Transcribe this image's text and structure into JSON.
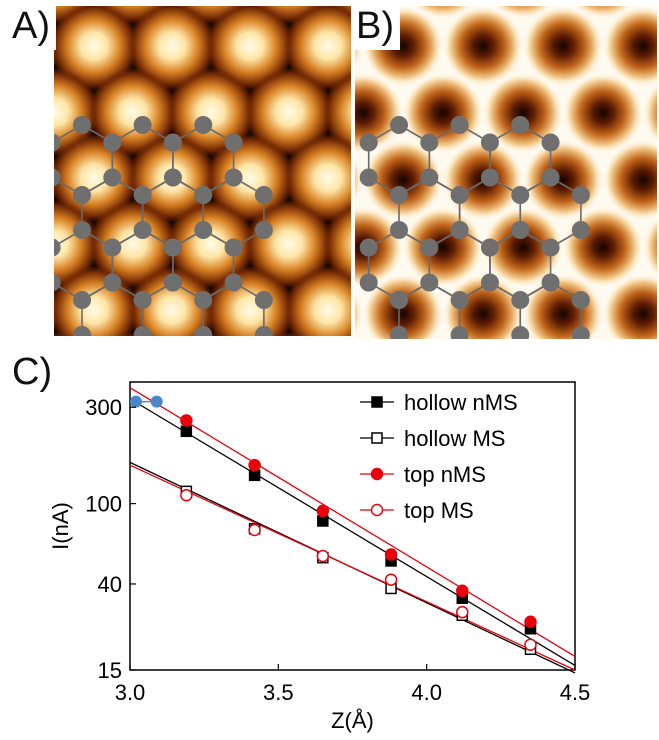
{
  "panels": {
    "a_label": "A)",
    "b_label": "B)",
    "c_label": "C)"
  },
  "colors": {
    "atom": "#6f6f6f",
    "bond": "#6a6a6a",
    "bright": "#fffbe8",
    "dark": "#140400",
    "midtone": "#b8520a",
    "tip_marker": "#4a86c8",
    "nms_line": "#000000",
    "ms_line": "#e8000b"
  },
  "chart_data": {
    "type": "line",
    "title": "",
    "xlabel": "Z(Å)",
    "ylabel": "I(nA)",
    "xlim": [
      3.0,
      4.5
    ],
    "ylim": [
      15,
      400
    ],
    "yscale": "log",
    "xticks": [
      3.0,
      3.5,
      4.0,
      4.5
    ],
    "xtick_labels": [
      "3.0",
      "3.5",
      "4.0",
      "4.5"
    ],
    "yticks": [
      15,
      40,
      100,
      300
    ],
    "ytick_labels": [
      "15",
      "40",
      "100",
      "300"
    ],
    "legend_position": "top-right",
    "series": [
      {
        "name": "hollow nMS",
        "color": "#000000",
        "marker": "square-filled",
        "x": [
          3.19,
          3.42,
          3.65,
          3.88,
          4.12,
          4.35
        ],
        "y": [
          228,
          138,
          82,
          52,
          34,
          24
        ],
        "fit": [
          [
            3.0,
            330
          ],
          [
            4.5,
            15.8
          ]
        ]
      },
      {
        "name": "hollow MS",
        "color": "#000000",
        "marker": "square-open",
        "x": [
          3.19,
          3.42,
          3.65,
          3.88,
          4.12,
          4.35
        ],
        "y": [
          115,
          75,
          54,
          38,
          28,
          19
        ],
        "fit": [
          [
            3.0,
            160
          ],
          [
            4.5,
            14.5
          ]
        ]
      },
      {
        "name": "top nMS",
        "color": "#e8000b",
        "marker": "circle-filled",
        "x": [
          3.19,
          3.42,
          3.65,
          3.88,
          4.12,
          4.35
        ],
        "y": [
          258,
          155,
          92,
          56,
          37,
          26
        ],
        "fit": [
          [
            3.0,
            375
          ],
          [
            4.5,
            17.5
          ]
        ]
      },
      {
        "name": "top MS",
        "color": "#e8000b",
        "marker": "circle-open",
        "x": [
          3.19,
          3.42,
          3.65,
          3.88,
          4.12,
          4.35
        ],
        "y": [
          110,
          74,
          55,
          42,
          29,
          20
        ],
        "fit": [
          [
            3.0,
            155
          ],
          [
            4.5,
            15
          ]
        ]
      }
    ],
    "extra_points": {
      "color": "#4a86c8",
      "x": [
        3.02,
        3.09
      ],
      "y": [
        320,
        320
      ]
    }
  }
}
